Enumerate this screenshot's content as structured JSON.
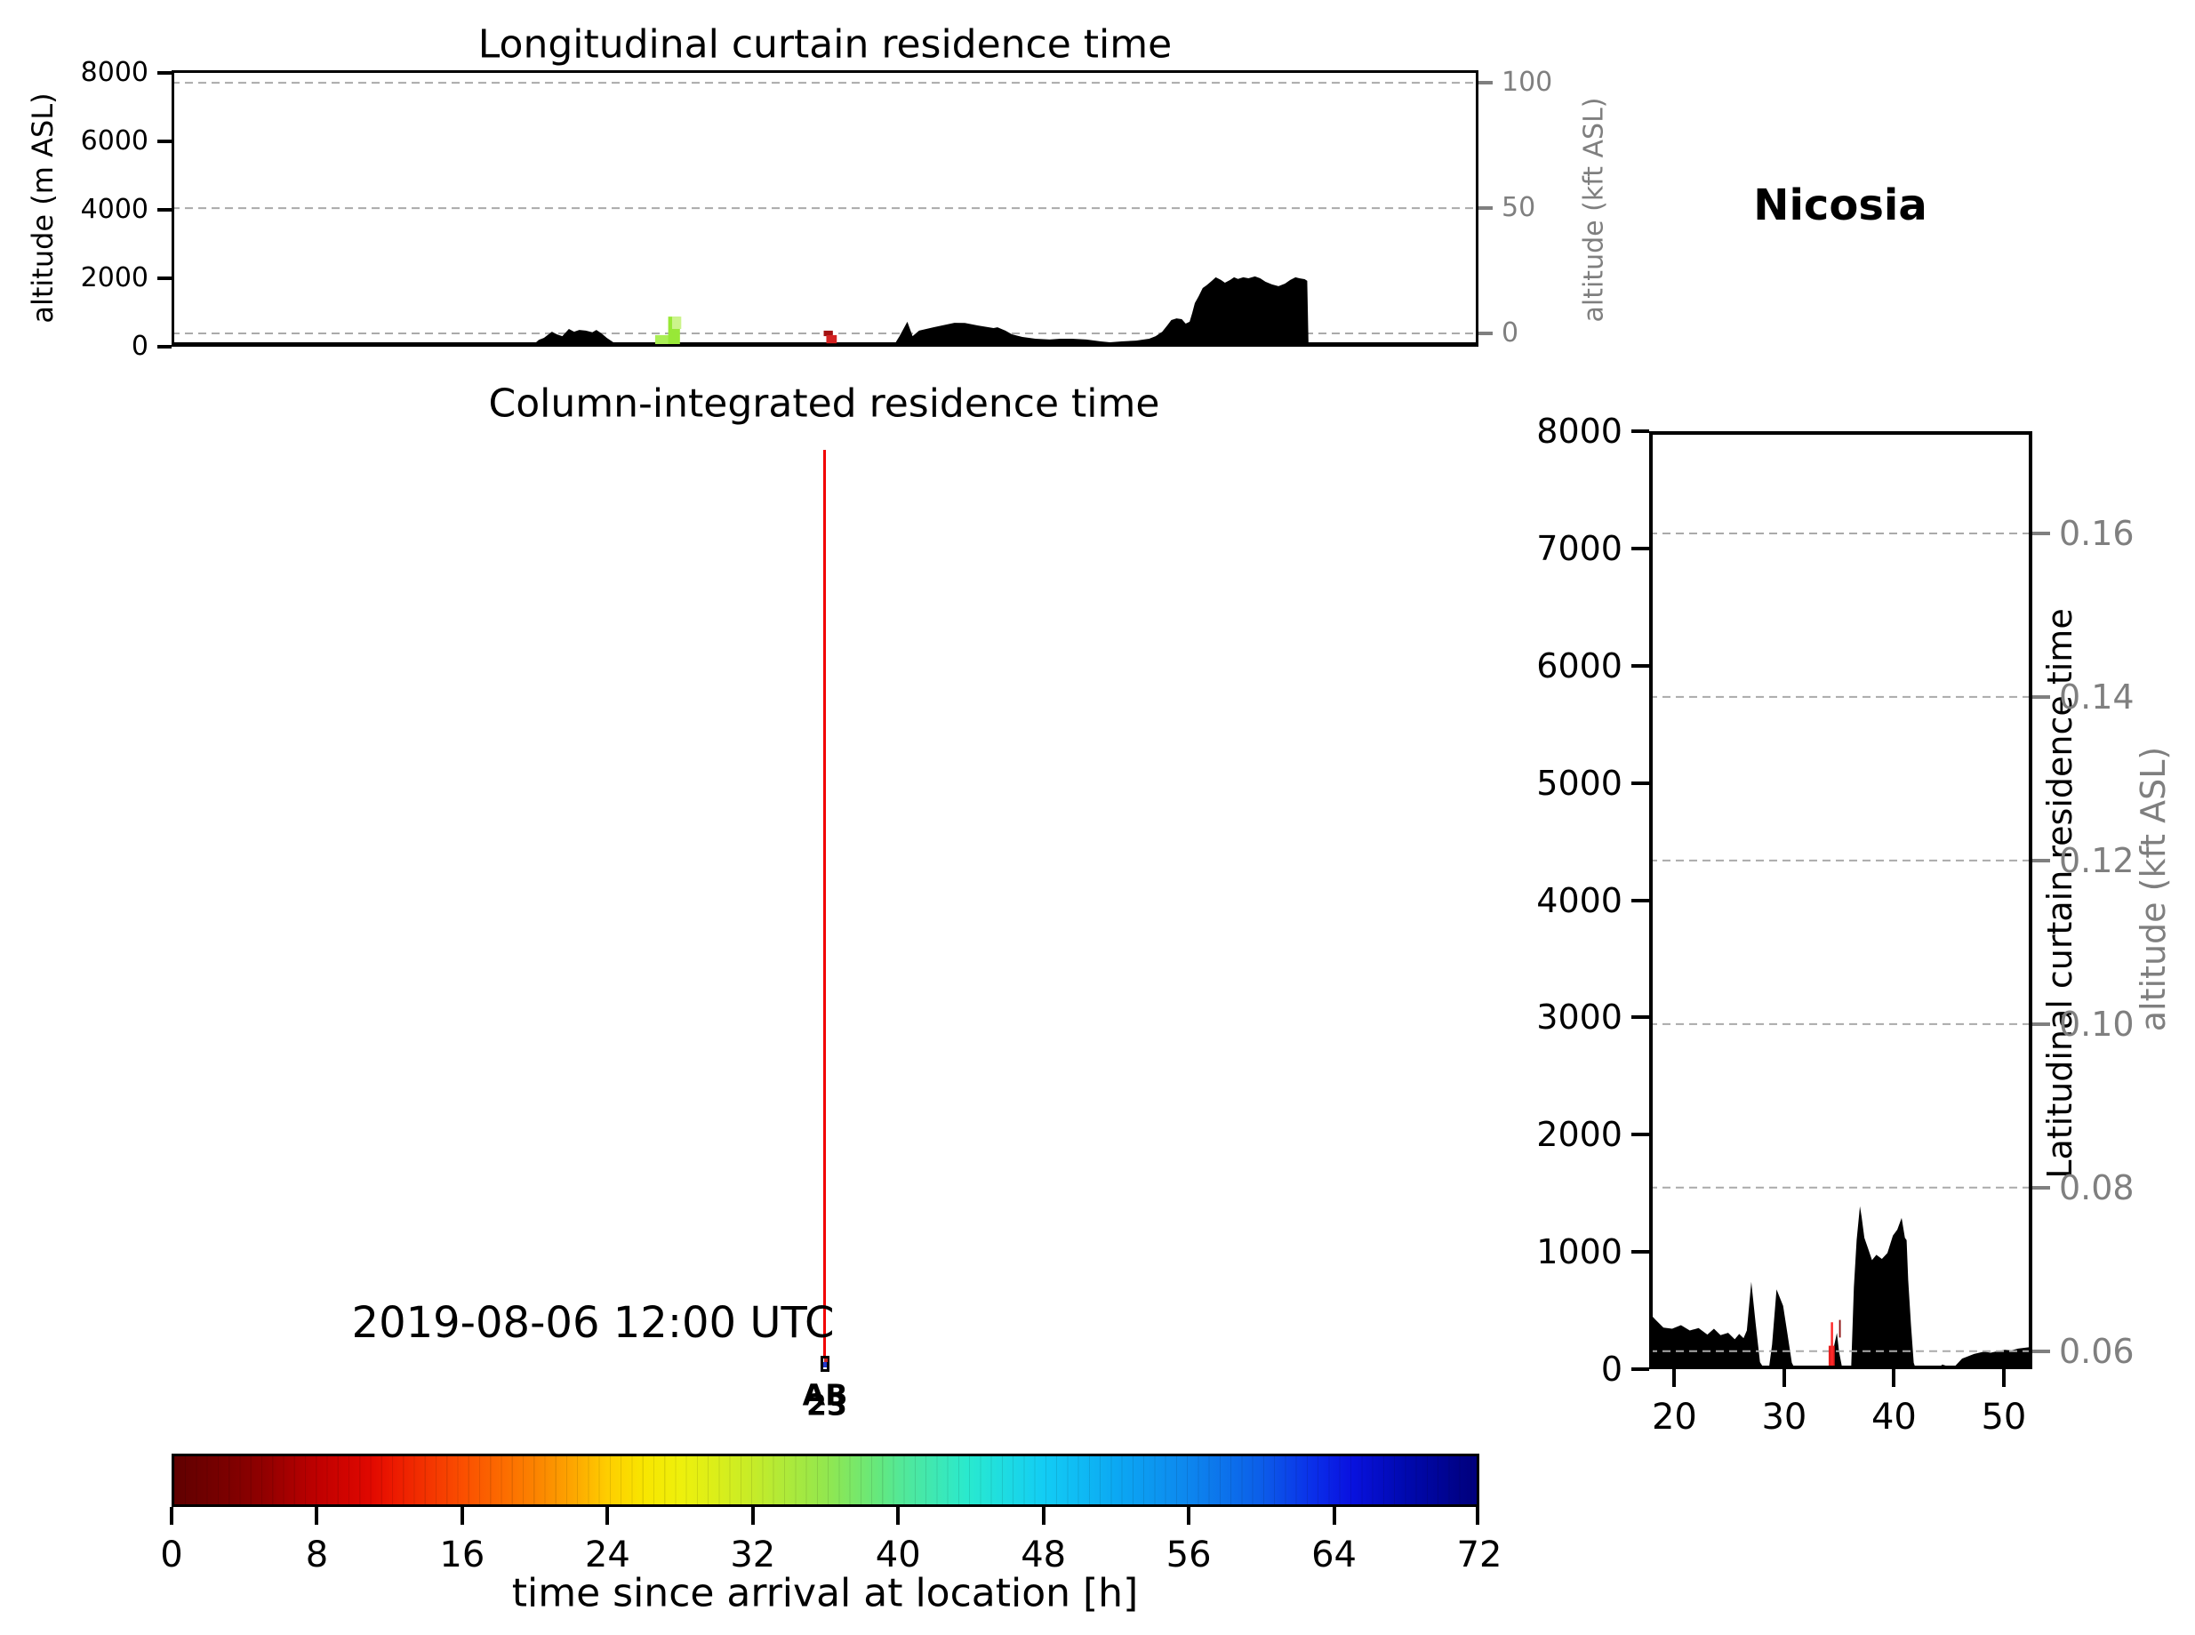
{
  "header": {
    "location": "Nicosia"
  },
  "chart_data": [
    {
      "id": "longitudinal-curtain",
      "type": "area",
      "title": "Longitudinal curtain residence time",
      "ylabel": "altitude (m ASL)",
      "ylabel_right": "altitude (kft ASL)",
      "ylim": [
        0,
        8080
      ],
      "yticks": [
        0,
        2000,
        4000,
        6000,
        8000
      ],
      "ylim_right": [
        -5.3,
        105
      ],
      "yticks_right": [
        {
          "v": 0,
          "label": "0"
        },
        {
          "v": 50,
          "label": "50"
        },
        {
          "v": 100,
          "label": "100"
        }
      ],
      "xlim": [
        0,
        1
      ],
      "xticks": [],
      "grid": "dashed",
      "legend": "none",
      "series": [
        {
          "name": "terrain-silhouette",
          "color": "#000000",
          "points": [
            [
              0,
              0
            ],
            [
              0.275,
              0
            ],
            [
              0.281,
              200
            ],
            [
              0.285,
              260
            ],
            [
              0.291,
              440
            ],
            [
              0.295,
              360
            ],
            [
              0.299,
              310
            ],
            [
              0.304,
              520
            ],
            [
              0.308,
              440
            ],
            [
              0.312,
              490
            ],
            [
              0.317,
              470
            ],
            [
              0.322,
              420
            ],
            [
              0.325,
              490
            ],
            [
              0.329,
              390
            ],
            [
              0.333,
              260
            ],
            [
              0.338,
              130
            ],
            [
              0.345,
              40
            ],
            [
              0.37,
              25
            ],
            [
              0.45,
              25
            ],
            [
              0.55,
              30
            ],
            [
              0.553,
              60
            ],
            [
              0.557,
              310
            ],
            [
              0.563,
              730
            ],
            [
              0.567,
              310
            ],
            [
              0.572,
              470
            ],
            [
              0.583,
              570
            ],
            [
              0.599,
              700
            ],
            [
              0.607,
              695
            ],
            [
              0.617,
              620
            ],
            [
              0.629,
              545
            ],
            [
              0.632,
              570
            ],
            [
              0.638,
              470
            ],
            [
              0.643,
              365
            ],
            [
              0.651,
              285
            ],
            [
              0.661,
              235
            ],
            [
              0.672,
              210
            ],
            [
              0.68,
              235
            ],
            [
              0.689,
              235
            ],
            [
              0.7,
              210
            ],
            [
              0.711,
              155
            ],
            [
              0.718,
              130
            ],
            [
              0.727,
              155
            ],
            [
              0.738,
              180
            ],
            [
              0.748,
              235
            ],
            [
              0.753,
              310
            ],
            [
              0.758,
              440
            ],
            [
              0.762,
              625
            ],
            [
              0.765,
              780
            ],
            [
              0.769,
              830
            ],
            [
              0.773,
              805
            ],
            [
              0.776,
              675
            ],
            [
              0.779,
              730
            ],
            [
              0.781,
              990
            ],
            [
              0.783,
              1275
            ],
            [
              0.786,
              1480
            ],
            [
              0.789,
              1715
            ],
            [
              0.792,
              1795
            ],
            [
              0.796,
              1925
            ],
            [
              0.799,
              2030
            ],
            [
              0.803,
              1950
            ],
            [
              0.806,
              1870
            ],
            [
              0.81,
              1950
            ],
            [
              0.813,
              2030
            ],
            [
              0.816,
              1980
            ],
            [
              0.82,
              2030
            ],
            [
              0.824,
              2000
            ],
            [
              0.829,
              2055
            ],
            [
              0.833,
              2000
            ],
            [
              0.837,
              1900
            ],
            [
              0.842,
              1820
            ],
            [
              0.847,
              1770
            ],
            [
              0.852,
              1845
            ],
            [
              0.856,
              1950
            ],
            [
              0.86,
              2030
            ],
            [
              0.863,
              2000
            ],
            [
              0.867,
              1975
            ],
            [
              0.869,
              1925
            ],
            [
              0.87,
              0
            ],
            [
              1,
              0
            ]
          ]
        }
      ],
      "patches": [
        {
          "name": "residence-patch-green-1",
          "color": "#aaee55",
          "x": [
            0.37,
            0.381
          ],
          "y": [
            30,
            340
          ]
        },
        {
          "name": "residence-patch-green-2",
          "color": "#98e837",
          "x": [
            0.38,
            0.389
          ],
          "y": [
            30,
            880
          ]
        },
        {
          "name": "residence-patch-green-3",
          "color": "#ccf48c",
          "x": [
            0.383,
            0.39
          ],
          "y": [
            520,
            880
          ]
        },
        {
          "name": "residence-patch-red-1",
          "color": "#a31212",
          "x": [
            0.499,
            0.506
          ],
          "y": [
            310,
            470
          ]
        },
        {
          "name": "residence-patch-red-2",
          "color": "#d42222",
          "x": [
            0.501,
            0.509
          ],
          "y": [
            100,
            340
          ]
        }
      ]
    },
    {
      "id": "column-integrated",
      "type": "scatter",
      "title": "Column-integrated residence time",
      "annotations": {
        "timestamp": "2019-08-06 12:00 UTC",
        "overlapped_labels": [
          "AB",
          "23"
        ]
      },
      "trajectory": {
        "line_color": "#f10000",
        "marker_edge_color": "#000000",
        "marker_fill_colors": [
          "#cc2222",
          "#2238cc"
        ]
      }
    },
    {
      "id": "latitudinal-curtain",
      "type": "area",
      "title_rotated": "Latitudinal curtain residence time",
      "ylabel_right": "altitude (kft ASL)",
      "ylim": [
        0,
        8000
      ],
      "yticks": [
        0,
        1000,
        2000,
        3000,
        4000,
        5000,
        6000,
        7000,
        8000
      ],
      "ylim_right": [
        0.0578,
        0.1725
      ],
      "yticks_right": [
        {
          "v": 0.06,
          "label": "0.06"
        },
        {
          "v": 0.08,
          "label": "0.08"
        },
        {
          "v": 0.1,
          "label": "0.10"
        },
        {
          "v": 0.12,
          "label": "0.12"
        },
        {
          "v": 0.14,
          "label": "0.14"
        },
        {
          "v": 0.16,
          "label": "0.16"
        }
      ],
      "xlim": [
        17.7,
        52.6
      ],
      "xticks": [
        20,
        30,
        40,
        50
      ],
      "grid": "dashed",
      "series": [
        {
          "name": "terrain-silhouette",
          "color": "#000000",
          "points": [
            [
              17.7,
              480
            ],
            [
              18.3,
              420
            ],
            [
              19,
              355
            ],
            [
              19.8,
              345
            ],
            [
              20.6,
              375
            ],
            [
              21.4,
              330
            ],
            [
              22.2,
              350
            ],
            [
              23,
              295
            ],
            [
              23.6,
              345
            ],
            [
              24.2,
              290
            ],
            [
              24.9,
              310
            ],
            [
              25.5,
              255
            ],
            [
              25.9,
              300
            ],
            [
              26.3,
              265
            ],
            [
              26.6,
              330
            ],
            [
              27,
              745
            ],
            [
              27.4,
              390
            ],
            [
              27.8,
              60
            ],
            [
              28.2,
              0
            ],
            [
              28.6,
              0
            ],
            [
              28.9,
              210
            ],
            [
              29.3,
              680
            ],
            [
              29.9,
              540
            ],
            [
              30.3,
              300
            ],
            [
              30.7,
              55
            ],
            [
              31,
              0
            ],
            [
              33.9,
              0
            ],
            [
              34.2,
              50
            ],
            [
              34.8,
              310
            ],
            [
              35,
              150
            ],
            [
              35.3,
              0
            ],
            [
              36.1,
              0
            ],
            [
              36.35,
              700
            ],
            [
              36.6,
              1100
            ],
            [
              36.9,
              1390
            ],
            [
              37.05,
              1300
            ],
            [
              37.3,
              1120
            ],
            [
              37.6,
              1040
            ],
            [
              38,
              930
            ],
            [
              38.4,
              975
            ],
            [
              38.9,
              940
            ],
            [
              39.4,
              990
            ],
            [
              39.9,
              1140
            ],
            [
              40.3,
              1190
            ],
            [
              40.7,
              1290
            ],
            [
              41,
              1120
            ],
            [
              41.15,
              1100
            ],
            [
              41.3,
              760
            ],
            [
              41.55,
              380
            ],
            [
              41.8,
              55
            ],
            [
              42,
              0
            ],
            [
              44,
              0
            ],
            [
              44.4,
              40
            ],
            [
              44.9,
              25
            ],
            [
              45.5,
              20
            ],
            [
              46.2,
              90
            ],
            [
              47.3,
              130
            ],
            [
              48.2,
              150
            ],
            [
              48.8,
              140
            ],
            [
              49.5,
              155
            ],
            [
              50.1,
              165
            ],
            [
              50.7,
              160
            ],
            [
              51.3,
              175
            ],
            [
              52.6,
              190
            ]
          ]
        }
      ],
      "patches": [
        {
          "name": "residence-patch-red-bar",
          "color": "#e62020",
          "x": [
            34.05,
            34.6
          ],
          "y": [
            0,
            200
          ]
        },
        {
          "name": "residence-patch-red-spike",
          "color": "#ff2a2a",
          "x": [
            34.25,
            34.45
          ],
          "y": [
            0,
            400
          ]
        },
        {
          "name": "residence-patch-darkred-spike",
          "color": "#8c0f0f",
          "x": [
            35.0,
            35.15
          ],
          "y": [
            270,
            420
          ]
        }
      ]
    },
    {
      "id": "colorbar",
      "type": "colorbar",
      "label": "time since arrival at location [h]",
      "lim": [
        0,
        72
      ],
      "ticks": [
        0,
        8,
        16,
        24,
        32,
        40,
        48,
        56,
        64,
        72
      ],
      "stops": [
        [
          0,
          "#600000"
        ],
        [
          0.03,
          "#740000"
        ],
        [
          0.07,
          "#920000"
        ],
        [
          0.111,
          "#c00000"
        ],
        [
          0.15,
          "#e00800"
        ],
        [
          0.167,
          "#ec1800"
        ],
        [
          0.222,
          "#fb4f00"
        ],
        [
          0.278,
          "#fc8400"
        ],
        [
          0.306,
          "#fda600"
        ],
        [
          0.333,
          "#fece00"
        ],
        [
          0.361,
          "#f8e600"
        ],
        [
          0.389,
          "#eef00c"
        ],
        [
          0.444,
          "#c6ec28"
        ],
        [
          0.5,
          "#93e74e"
        ],
        [
          0.542,
          "#63e87f"
        ],
        [
          0.556,
          "#55e895"
        ],
        [
          0.611,
          "#28e9d0"
        ],
        [
          0.667,
          "#13cdf4"
        ],
        [
          0.722,
          "#0ca9f3"
        ],
        [
          0.778,
          "#0d87ee"
        ],
        [
          0.833,
          "#0c5fe9"
        ],
        [
          0.875,
          "#0a2ee9"
        ],
        [
          0.903,
          "#0912e0"
        ],
        [
          0.944,
          "#0009b0"
        ],
        [
          1,
          "#00007c"
        ]
      ]
    }
  ],
  "colors": {
    "spine": "#000000",
    "grid": "#aaaaaa",
    "secondary_axis": "#7f7f7f",
    "trajectory_red": "#f10000",
    "terrain": "#000000"
  }
}
